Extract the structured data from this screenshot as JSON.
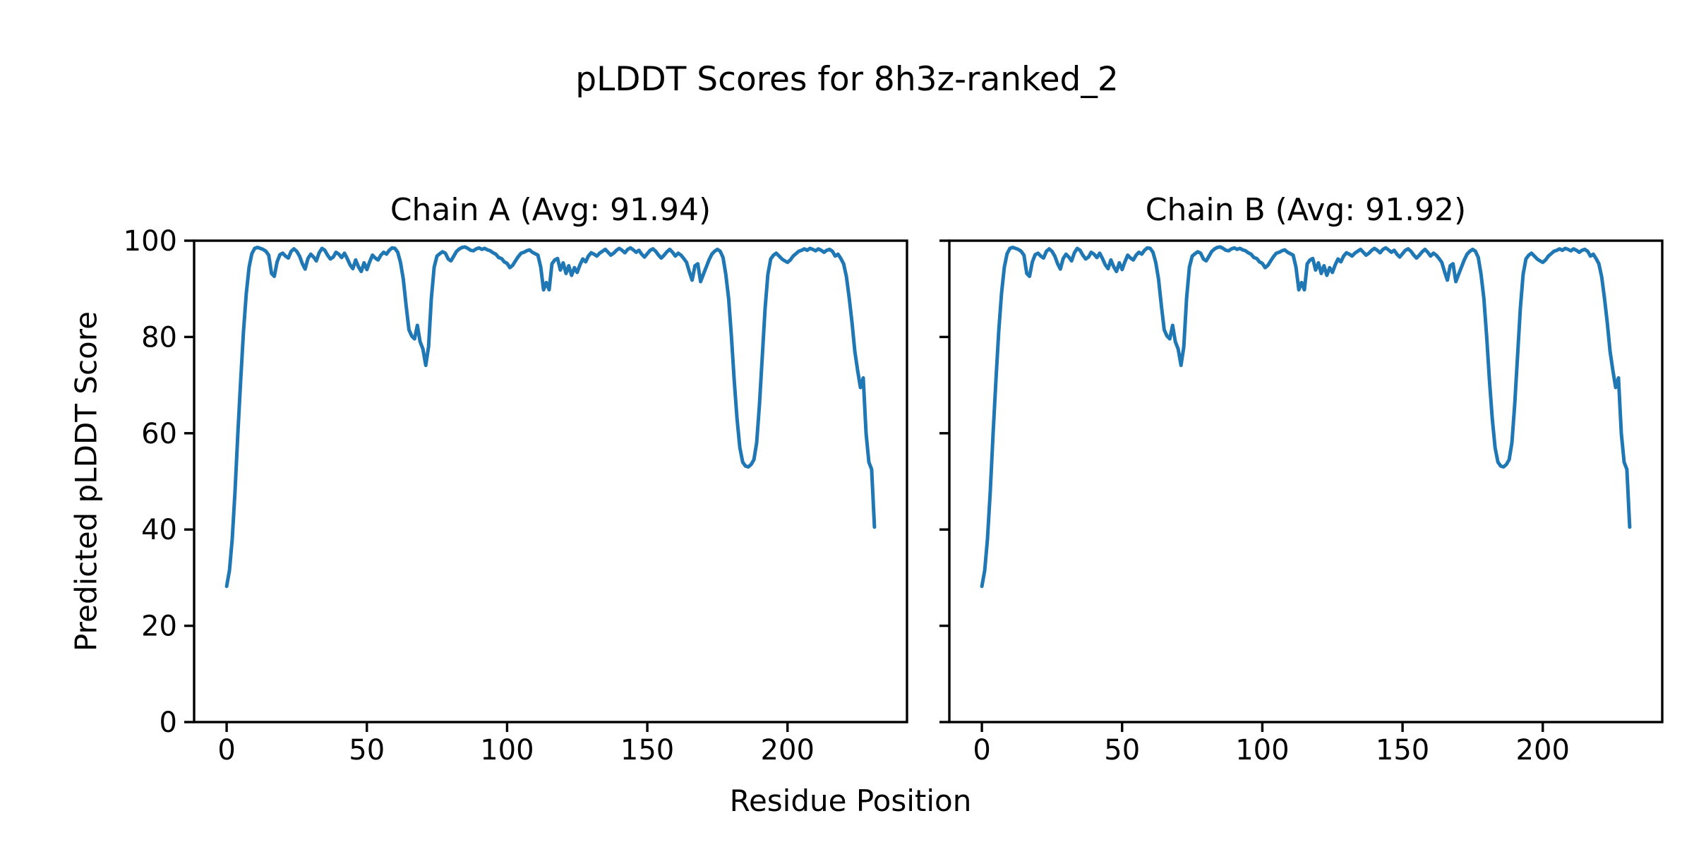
{
  "figure": {
    "suptitle": "pLDDT Scores for 8h3z-ranked_2",
    "xlabel": "Residue Position",
    "ylabel": "Predicted pLDDT Score",
    "background_color": "#ffffff",
    "text_color": "#000000",
    "line_color": "#1f77b4"
  },
  "chart_data": [
    {
      "type": "line",
      "title": "Chain A (Avg: 91.94)",
      "chain": "A",
      "avg": 91.94,
      "xlabel": "Residue Position",
      "ylabel": "Predicted pLDDT Score",
      "xlim": [
        -11.6,
        242.6
      ],
      "ylim": [
        0,
        100
      ],
      "x_ticks": [
        0,
        50,
        100,
        150,
        200
      ],
      "y_ticks": [
        0,
        20,
        40,
        60,
        80,
        100
      ],
      "y_tick_labels_visible": true,
      "grid": false,
      "legend": null,
      "series": [
        {
          "name": "pLDDT",
          "color": "#1f77b4",
          "x_start": 0,
          "x_step": 1,
          "values": [
            28.2,
            31.5,
            38,
            48,
            60,
            71,
            81,
            89,
            94.5,
            97.3,
            98.4,
            98.6,
            98.4,
            98.2,
            97.8,
            97,
            93.2,
            92.6,
            95.6,
            97.1,
            97.4,
            96.8,
            96.4,
            97.8,
            98.3,
            97.8,
            96.8,
            95.2,
            94.1,
            96.3,
            97.2,
            96.6,
            95.8,
            97.5,
            98.4,
            98,
            97,
            96.2,
            96.6,
            97.6,
            97.2,
            96.5,
            97.4,
            96.3,
            95,
            94.2,
            96,
            94.6,
            93.6,
            95.4,
            94,
            95.6,
            97,
            96.4,
            96,
            97,
            97.6,
            97.2,
            98,
            98.5,
            98.4,
            97.6,
            95.5,
            92,
            86.5,
            81.5,
            80.2,
            79.6,
            82.4,
            79,
            77.5,
            74.1,
            78,
            88,
            94.5,
            96.8,
            97.3,
            97.7,
            97.4,
            96.2,
            95.8,
            96.8,
            97.8,
            98.3,
            98.6,
            98.7,
            98.4,
            98,
            97.9,
            98.3,
            98.5,
            98.2,
            98.4,
            98.1,
            97.9,
            97.5,
            97.2,
            96.5,
            96.3,
            95.6,
            95.3,
            94.4,
            94.9,
            95.8,
            96.7,
            97.4,
            97.6,
            97.9,
            98.1,
            97.6,
            97.3,
            97,
            94.5,
            89.8,
            91.3,
            89.8,
            95.2,
            96,
            96.3,
            93.9,
            95.4,
            93.2,
            94.8,
            92.8,
            94.4,
            93.4,
            95,
            96.2,
            95.6,
            96.8,
            97.5,
            97.2,
            96.8,
            97.4,
            97.8,
            98.2,
            97.6,
            97,
            97.4,
            98,
            98.4,
            98,
            97.5,
            98.2,
            98.5,
            98.1,
            97.6,
            98,
            97.2,
            96.6,
            97.3,
            98,
            98.3,
            97.8,
            97,
            96.4,
            97,
            97.7,
            98.2,
            97.6,
            96.8,
            97.4,
            97,
            96.3,
            95.5,
            93.5,
            91.8,
            94.8,
            95.2,
            91.5,
            93,
            94.5,
            96,
            97.2,
            97.8,
            98.2,
            97.8,
            96.5,
            93,
            88,
            80,
            71,
            63,
            57,
            54,
            53.2,
            53,
            53.5,
            54.5,
            58,
            66,
            76,
            86,
            93,
            96.2,
            97,
            97.4,
            96.8,
            96.2,
            95.8,
            95.5,
            96,
            96.8,
            97.3,
            97.8,
            98,
            98.3,
            98,
            98.4,
            98.2,
            97.9,
            98.3,
            98,
            97.6,
            98,
            98.2,
            97.8,
            96.8,
            97.2,
            96.3,
            95.2,
            92.5,
            88,
            83,
            77,
            73,
            69.5,
            71.5,
            60,
            54,
            52.5,
            40.5
          ]
        }
      ]
    },
    {
      "type": "line",
      "title": "Chain B (Avg: 91.92)",
      "chain": "B",
      "avg": 91.92,
      "xlabel": "Residue Position",
      "ylabel": "Predicted pLDDT Score",
      "xlim": [
        -11.6,
        242.6
      ],
      "ylim": [
        0,
        100
      ],
      "x_ticks": [
        0,
        50,
        100,
        150,
        200
      ],
      "y_ticks": [
        0,
        20,
        40,
        60,
        80,
        100
      ],
      "y_tick_labels_visible": false,
      "grid": false,
      "legend": null,
      "series": [
        {
          "name": "pLDDT",
          "color": "#1f77b4",
          "x_start": 0,
          "x_step": 1,
          "values": [
            28.2,
            31.5,
            38,
            48,
            60,
            71,
            81,
            89,
            94.5,
            97.3,
            98.4,
            98.6,
            98.4,
            98.2,
            97.8,
            97,
            93.2,
            92.6,
            95.6,
            97.1,
            97.4,
            96.8,
            96.4,
            97.8,
            98.3,
            97.8,
            96.8,
            95.2,
            94.1,
            96.3,
            97.2,
            96.6,
            95.8,
            97.5,
            98.4,
            98,
            97,
            96.2,
            96.6,
            97.6,
            97.2,
            96.5,
            97.4,
            96.3,
            95,
            94.2,
            96,
            94.6,
            93.6,
            95.4,
            94,
            95.6,
            97,
            96.4,
            96,
            97,
            97.6,
            97.2,
            98,
            98.5,
            98.4,
            97.6,
            95.5,
            92,
            86.5,
            81.5,
            80.2,
            79.6,
            82.4,
            79,
            77.5,
            74.1,
            78,
            88,
            94.5,
            96.8,
            97.3,
            97.7,
            97.4,
            96.2,
            95.8,
            96.8,
            97.8,
            98.3,
            98.6,
            98.7,
            98.4,
            98,
            97.9,
            98.3,
            98.5,
            98.2,
            98.4,
            98.1,
            97.9,
            97.5,
            97.2,
            96.5,
            96.3,
            95.6,
            95.3,
            94.4,
            94.9,
            95.8,
            96.7,
            97.4,
            97.6,
            97.9,
            98.1,
            97.6,
            97.3,
            97,
            94.5,
            89.8,
            91.3,
            89.8,
            95.2,
            96,
            96.3,
            93.9,
            95.4,
            93.2,
            94.8,
            92.8,
            94.4,
            93.4,
            95,
            96.2,
            95.6,
            96.8,
            97.5,
            97.2,
            96.8,
            97.4,
            97.8,
            98.2,
            97.6,
            97,
            97.4,
            98,
            98.4,
            98,
            97.5,
            98.2,
            98.5,
            98.1,
            97.6,
            98,
            97.2,
            96.6,
            97.3,
            98,
            98.3,
            97.8,
            97,
            96.4,
            97,
            97.7,
            98.2,
            97.6,
            96.8,
            97.4,
            97,
            96.3,
            95.5,
            93.5,
            91.8,
            94.8,
            95.2,
            91.5,
            93,
            94.5,
            96,
            97.2,
            97.8,
            98.2,
            97.8,
            96.5,
            93,
            88,
            80,
            71,
            63,
            57,
            54,
            53.2,
            53,
            53.5,
            54.5,
            58,
            66,
            76,
            86,
            93,
            96.2,
            97,
            97.4,
            96.8,
            96.2,
            95.8,
            95.5,
            96,
            96.8,
            97.3,
            97.8,
            98,
            98.3,
            98,
            98.4,
            98.2,
            97.9,
            98.3,
            98,
            97.6,
            98,
            98.2,
            97.8,
            96.8,
            97.2,
            96.3,
            95.2,
            92.5,
            88,
            83,
            77,
            73,
            69.5,
            71.5,
            60,
            54,
            52.5,
            40.5
          ]
        }
      ]
    }
  ]
}
